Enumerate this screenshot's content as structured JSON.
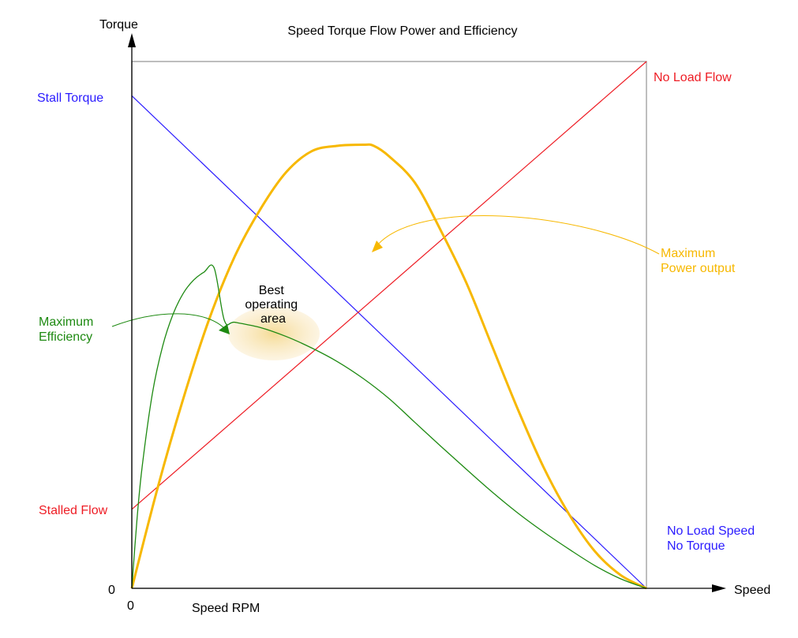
{
  "colors": {
    "torque": "#2a1bff",
    "flow": "#ee1c24",
    "power": "#f7b800",
    "efficiency": "#1e8a12",
    "axes": "#000000",
    "frame": "#9a9a9a",
    "best_area": "#f6dc96"
  },
  "chart_data": {
    "type": "line",
    "title": "Speed Torque Flow Power and Efficiency",
    "xlabel": "Speed",
    "x_sublabel": "Speed RPM",
    "ylabel": "Torque",
    "x_origin_label": "0",
    "y_origin_label": "0",
    "xlim": [
      0,
      100
    ],
    "ylim": [
      0,
      100
    ],
    "grid": false,
    "series": [
      {
        "name": "Torque",
        "key": "torque",
        "x": [
          0,
          100
        ],
        "y": [
          93.5,
          0
        ]
      },
      {
        "name": "Flow",
        "key": "flow",
        "x": [
          0,
          100
        ],
        "y": [
          15,
          100
        ]
      },
      {
        "name": "Power output",
        "key": "power",
        "x": [
          0,
          5,
          10,
          15,
          20,
          25,
          30,
          35,
          40,
          45,
          47,
          50,
          55,
          60,
          65,
          70,
          75,
          80,
          85,
          90,
          95,
          100
        ],
        "y": [
          0,
          19,
          36,
          51,
          63,
          72,
          79,
          83,
          84,
          84.2,
          84,
          82,
          77,
          68,
          58,
          46,
          34,
          23,
          14,
          7,
          2.5,
          0
        ]
      },
      {
        "name": "Efficiency",
        "key": "efficiency",
        "x": [
          0,
          1,
          2,
          4,
          6,
          8,
          10,
          12,
          14,
          16,
          18,
          20,
          25,
          30,
          35,
          40,
          45,
          50,
          55,
          60,
          65,
          70,
          75,
          80,
          85,
          90,
          95,
          100
        ],
        "y": [
          0,
          13,
          23,
          37,
          46,
          52,
          56,
          58.5,
          60,
          60.8,
          50.8,
          50.5,
          49.5,
          47.8,
          45.6,
          43,
          39.8,
          36,
          31.5,
          27,
          22.6,
          18.3,
          14.3,
          10.7,
          7.4,
          4.3,
          1.8,
          0
        ]
      }
    ],
    "annotations": {
      "stall_torque": "Stall Torque",
      "no_load_flow": "No Load Flow",
      "stalled_flow": "Stalled Flow",
      "max_power": [
        "Maximum",
        "Power output"
      ],
      "max_efficiency": [
        "Maximum",
        "Efficiency"
      ],
      "best_area": [
        "Best",
        "operating",
        "area"
      ],
      "no_load_speed": [
        "No Load Speed",
        "No Torque"
      ]
    }
  }
}
